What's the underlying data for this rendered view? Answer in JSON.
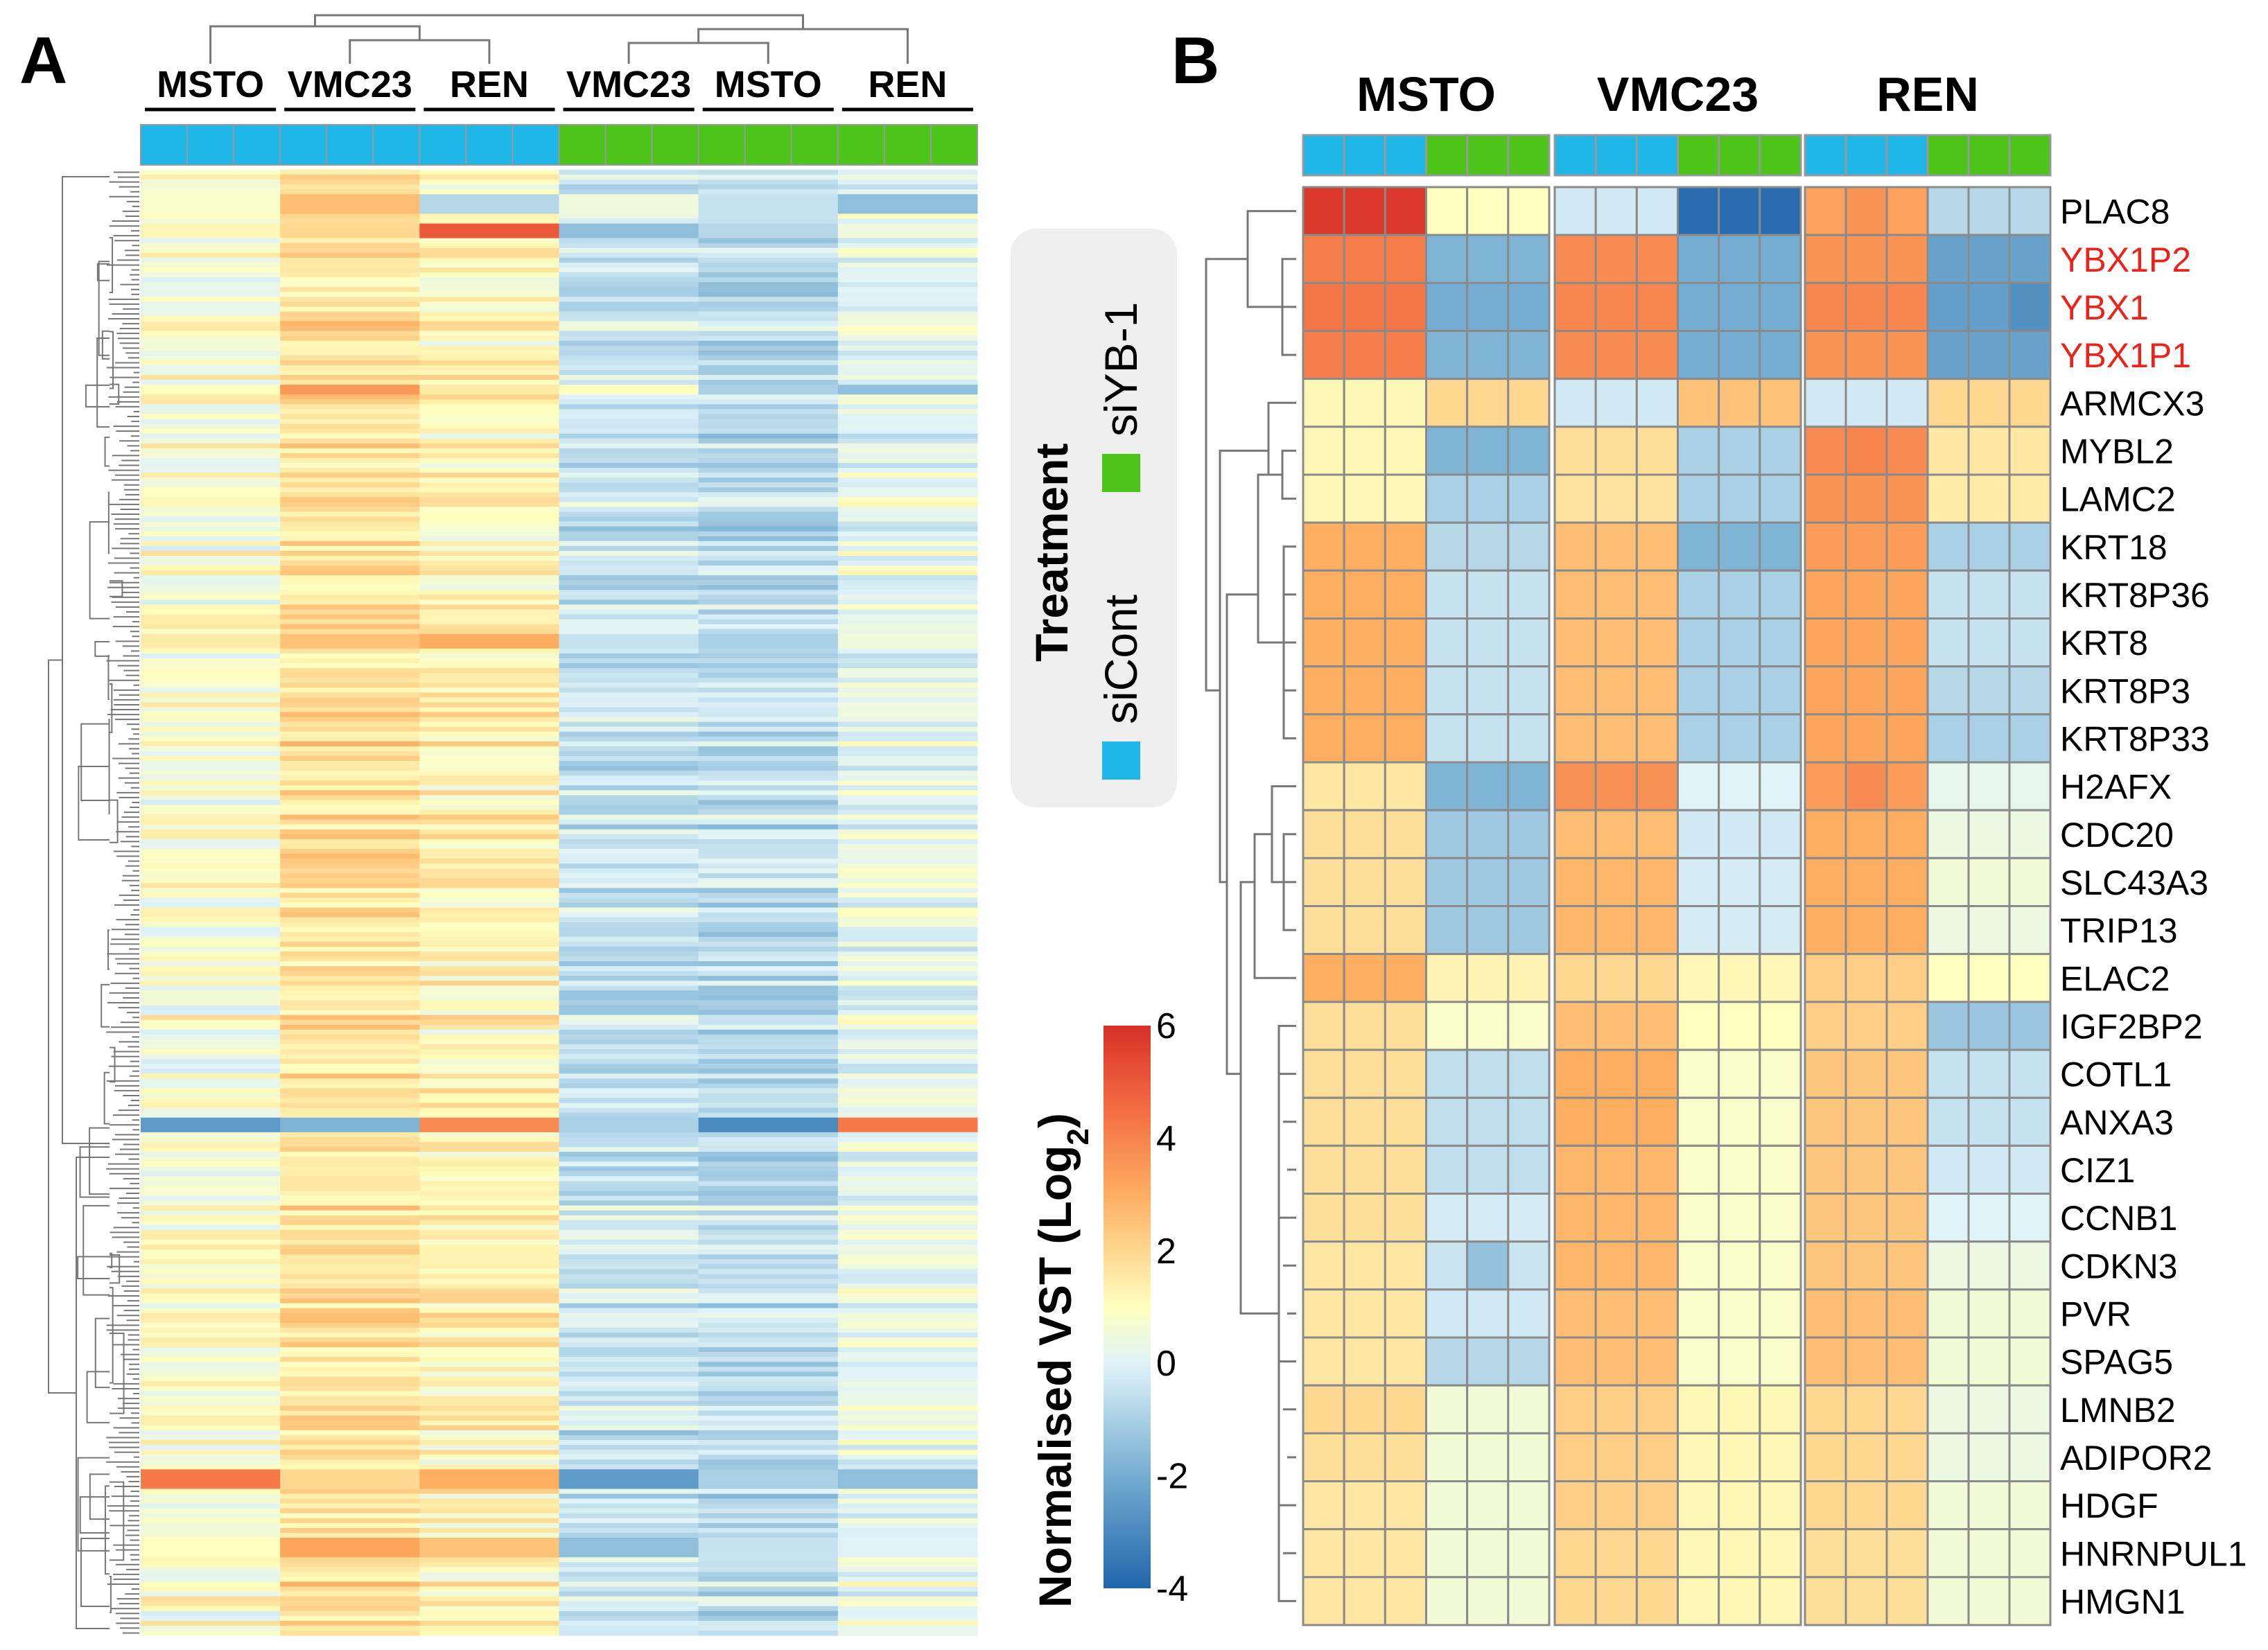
{
  "panel_labels": {
    "a": "A",
    "b": "B"
  },
  "colors": {
    "siCont": "#1fb6e8",
    "siYB1": "#4cc41a",
    "highlight": "#e8241c",
    "grid": "#888888",
    "gene_text": "#000000"
  },
  "chart_data": [
    {
      "type": "heatmap",
      "title": "A",
      "column_groups": [
        "MSTO",
        "VMC23",
        "REN",
        "VMC23",
        "MSTO",
        "REN"
      ],
      "columns_per_group": 3,
      "treatment": [
        "siCont",
        "siCont",
        "siCont",
        "siCont",
        "siCont",
        "siCont",
        "siCont",
        "siCont",
        "siCont",
        "siYB-1",
        "siYB-1",
        "siYB-1",
        "siYB-1",
        "siYB-1",
        "siYB-1",
        "siYB-1",
        "siYB-1",
        "siYB-1"
      ],
      "rows_description": "Approximately 300 clustered genes (dense heatmap, row labels not shown)",
      "group_means": [
        0.8,
        1.8,
        1.3,
        -0.4,
        -0.6,
        0.3
      ]
    },
    {
      "type": "heatmap",
      "title": "B",
      "column_groups": [
        "MSTO",
        "VMC23",
        "REN"
      ],
      "treatment_per_group": [
        "siCont",
        "siCont",
        "siCont",
        "siYB-1",
        "siYB-1",
        "siYB-1"
      ],
      "genes": [
        "PLAC8",
        "YBX1P2",
        "YBX1",
        "YBX1P1",
        "ARMCX3",
        "MYBL2",
        "LAMC2",
        "KRT18",
        "KRT8P36",
        "KRT8",
        "KRT8P3",
        "KRT8P33",
        "H2AFX",
        "CDC20",
        "SLC43A3",
        "TRIP13",
        "ELAC2",
        "IGF2BP2",
        "COTL1",
        "ANXA3",
        "CIZ1",
        "CCNB1",
        "CDKN3",
        "PVR",
        "SPAG5",
        "LMNB2",
        "ADIPOR2",
        "HDGF",
        "HNRNPUL1",
        "HMGN1"
      ],
      "highlighted_genes": [
        "YBX1P2",
        "YBX1",
        "YBX1P1"
      ],
      "values": [
        [
          5.8,
          5.8,
          5.8,
          1.0,
          1.0,
          1.0,
          -0.3,
          -0.3,
          -0.3,
          -3.8,
          -3.8,
          -3.8,
          3.3,
          3.6,
          3.3,
          -0.8,
          -0.8,
          -0.8
        ],
        [
          4.1,
          4.1,
          4.1,
          -1.8,
          -1.8,
          -1.8,
          3.8,
          3.8,
          3.8,
          -2.0,
          -2.0,
          -2.0,
          3.6,
          3.6,
          3.6,
          -2.3,
          -2.3,
          -2.3
        ],
        [
          4.3,
          4.3,
          4.3,
          -2.0,
          -2.0,
          -2.0,
          3.9,
          3.9,
          3.9,
          -2.0,
          -2.0,
          -2.0,
          3.9,
          3.9,
          3.9,
          -2.4,
          -2.4,
          -2.8
        ],
        [
          4.1,
          4.1,
          4.1,
          -1.8,
          -1.8,
          -1.8,
          3.8,
          3.8,
          3.8,
          -2.0,
          -2.0,
          -2.0,
          3.6,
          3.6,
          3.6,
          -2.3,
          -2.3,
          -2.3
        ],
        [
          1.2,
          1.2,
          1.2,
          2.0,
          2.0,
          2.0,
          -0.3,
          -0.3,
          -0.3,
          2.5,
          2.5,
          2.5,
          -0.3,
          -0.3,
          -0.3,
          2.0,
          2.0,
          2.0
        ],
        [
          1.2,
          1.2,
          1.2,
          -1.8,
          -1.8,
          -1.8,
          1.8,
          1.8,
          1.8,
          -1.0,
          -1.0,
          -1.0,
          3.8,
          4.0,
          3.8,
          1.6,
          1.6,
          1.6
        ],
        [
          1.2,
          1.2,
          1.2,
          -1.0,
          -1.0,
          -1.0,
          1.7,
          1.7,
          1.7,
          -1.0,
          -1.0,
          -1.0,
          3.6,
          3.6,
          3.6,
          1.5,
          1.5,
          1.5
        ],
        [
          3.0,
          3.0,
          3.0,
          -0.8,
          -0.8,
          -0.8,
          2.6,
          2.6,
          2.6,
          -1.8,
          -1.8,
          -1.8,
          3.4,
          3.4,
          3.4,
          -1.0,
          -1.0,
          -1.0
        ],
        [
          3.0,
          3.0,
          3.0,
          -0.5,
          -0.5,
          -0.5,
          2.6,
          2.6,
          2.6,
          -1.0,
          -1.0,
          -1.0,
          3.2,
          3.2,
          3.2,
          -0.5,
          -0.5,
          -0.5
        ],
        [
          3.0,
          3.0,
          3.0,
          -0.5,
          -0.5,
          -0.5,
          2.6,
          2.6,
          2.6,
          -1.0,
          -1.0,
          -1.0,
          3.2,
          3.2,
          3.2,
          -0.5,
          -0.5,
          -0.5
        ],
        [
          3.0,
          3.0,
          3.0,
          -0.5,
          -0.5,
          -0.5,
          2.6,
          2.6,
          2.6,
          -1.0,
          -1.0,
          -1.0,
          3.2,
          3.2,
          3.2,
          -0.8,
          -0.8,
          -0.8
        ],
        [
          3.0,
          3.0,
          3.0,
          -0.5,
          -0.5,
          -0.5,
          2.6,
          2.6,
          2.6,
          -1.0,
          -1.0,
          -1.0,
          3.2,
          3.2,
          3.2,
          -1.0,
          -1.0,
          -1.0
        ],
        [
          1.6,
          1.6,
          1.6,
          -1.8,
          -1.8,
          -1.8,
          3.7,
          3.7,
          3.7,
          0.0,
          0.0,
          0.0,
          3.4,
          3.8,
          3.4,
          0.2,
          0.2,
          0.2
        ],
        [
          1.8,
          1.8,
          1.8,
          -1.2,
          -1.2,
          -1.2,
          2.6,
          2.6,
          2.6,
          -0.3,
          -0.3,
          -0.3,
          3.0,
          3.0,
          3.0,
          0.4,
          0.4,
          0.4
        ],
        [
          1.8,
          1.8,
          1.8,
          -1.2,
          -1.2,
          -1.2,
          2.8,
          2.8,
          2.8,
          -0.2,
          -0.2,
          -0.2,
          3.0,
          3.0,
          3.0,
          0.6,
          0.6,
          0.6
        ],
        [
          1.8,
          1.8,
          1.8,
          -1.2,
          -1.2,
          -1.2,
          2.8,
          2.8,
          2.8,
          -0.2,
          -0.2,
          -0.2,
          3.0,
          3.0,
          3.0,
          0.4,
          0.4,
          0.4
        ],
        [
          3.0,
          3.0,
          3.0,
          1.3,
          1.3,
          1.3,
          2.0,
          2.0,
          2.0,
          1.2,
          1.2,
          1.2,
          2.2,
          2.2,
          2.2,
          1.0,
          1.0,
          1.0
        ],
        [
          1.8,
          1.8,
          1.8,
          0.8,
          0.8,
          0.8,
          2.6,
          2.6,
          2.6,
          1.0,
          1.0,
          1.0,
          2.2,
          2.2,
          2.2,
          -1.3,
          -1.3,
          -1.3
        ],
        [
          1.8,
          1.8,
          1.8,
          -0.6,
          -0.6,
          -0.6,
          3.0,
          3.0,
          3.0,
          0.8,
          0.8,
          0.8,
          2.4,
          2.4,
          2.4,
          -0.5,
          -0.5,
          -0.5
        ],
        [
          1.8,
          1.8,
          1.8,
          -0.6,
          -0.6,
          -0.6,
          3.0,
          3.0,
          3.0,
          0.8,
          0.8,
          0.8,
          2.4,
          2.4,
          2.4,
          -0.5,
          -0.5,
          -0.5
        ],
        [
          1.8,
          1.8,
          1.8,
          -0.6,
          -0.6,
          -0.6,
          2.8,
          2.8,
          2.8,
          0.8,
          0.8,
          0.8,
          2.4,
          2.4,
          2.4,
          -0.3,
          -0.3,
          -0.3
        ],
        [
          1.8,
          1.8,
          1.8,
          -0.2,
          -0.2,
          -0.2,
          2.8,
          2.8,
          2.8,
          0.8,
          0.8,
          0.8,
          2.4,
          2.4,
          2.4,
          0.0,
          0.0,
          0.0
        ],
        [
          1.6,
          1.6,
          1.6,
          -0.4,
          -1.4,
          -0.4,
          2.8,
          2.8,
          2.8,
          0.8,
          0.8,
          0.8,
          2.4,
          2.4,
          2.4,
          0.4,
          0.4,
          0.4
        ],
        [
          1.6,
          1.6,
          1.6,
          -0.3,
          -0.3,
          -0.3,
          2.6,
          2.6,
          2.6,
          0.8,
          0.8,
          0.8,
          2.6,
          2.6,
          2.6,
          0.6,
          0.6,
          0.6
        ],
        [
          1.6,
          1.6,
          1.6,
          -0.8,
          -0.8,
          -0.8,
          2.6,
          2.6,
          2.6,
          0.8,
          0.8,
          0.8,
          2.6,
          2.6,
          2.6,
          0.6,
          0.6,
          0.6
        ],
        [
          2.0,
          2.0,
          2.0,
          0.6,
          0.6,
          0.6,
          2.2,
          2.2,
          2.2,
          1.2,
          1.2,
          1.2,
          2.0,
          2.0,
          2.0,
          0.4,
          0.4,
          0.4
        ],
        [
          1.8,
          1.8,
          1.8,
          0.6,
          0.6,
          0.6,
          2.2,
          2.2,
          2.2,
          1.2,
          1.2,
          1.2,
          2.0,
          2.0,
          2.0,
          0.4,
          0.4,
          0.4
        ],
        [
          1.6,
          1.6,
          1.6,
          0.6,
          0.6,
          0.6,
          2.2,
          2.2,
          2.2,
          1.2,
          1.2,
          1.2,
          2.0,
          2.0,
          2.0,
          0.6,
          0.6,
          0.6
        ],
        [
          1.6,
          1.6,
          1.6,
          0.6,
          0.6,
          0.6,
          2.0,
          2.0,
          2.0,
          1.2,
          1.2,
          1.2,
          1.8,
          1.8,
          1.8,
          0.6,
          0.6,
          0.6
        ],
        [
          1.6,
          1.6,
          1.6,
          0.6,
          0.6,
          0.6,
          2.0,
          2.0,
          2.0,
          1.2,
          1.2,
          1.2,
          1.8,
          1.8,
          1.8,
          0.6,
          0.6,
          0.6
        ]
      ]
    }
  ],
  "legend": {
    "treatment_title": "Treatment",
    "treatment_items": [
      "siCont",
      "siYB-1"
    ],
    "scale_title_prefix": "Normalised VST (Log",
    "scale_title_sub": "2",
    "scale_title_suffix": ")",
    "scale_ticks": [
      "6",
      "4",
      "2",
      "0",
      "-2",
      "-4"
    ],
    "scale_range": [
      -4,
      6
    ]
  }
}
